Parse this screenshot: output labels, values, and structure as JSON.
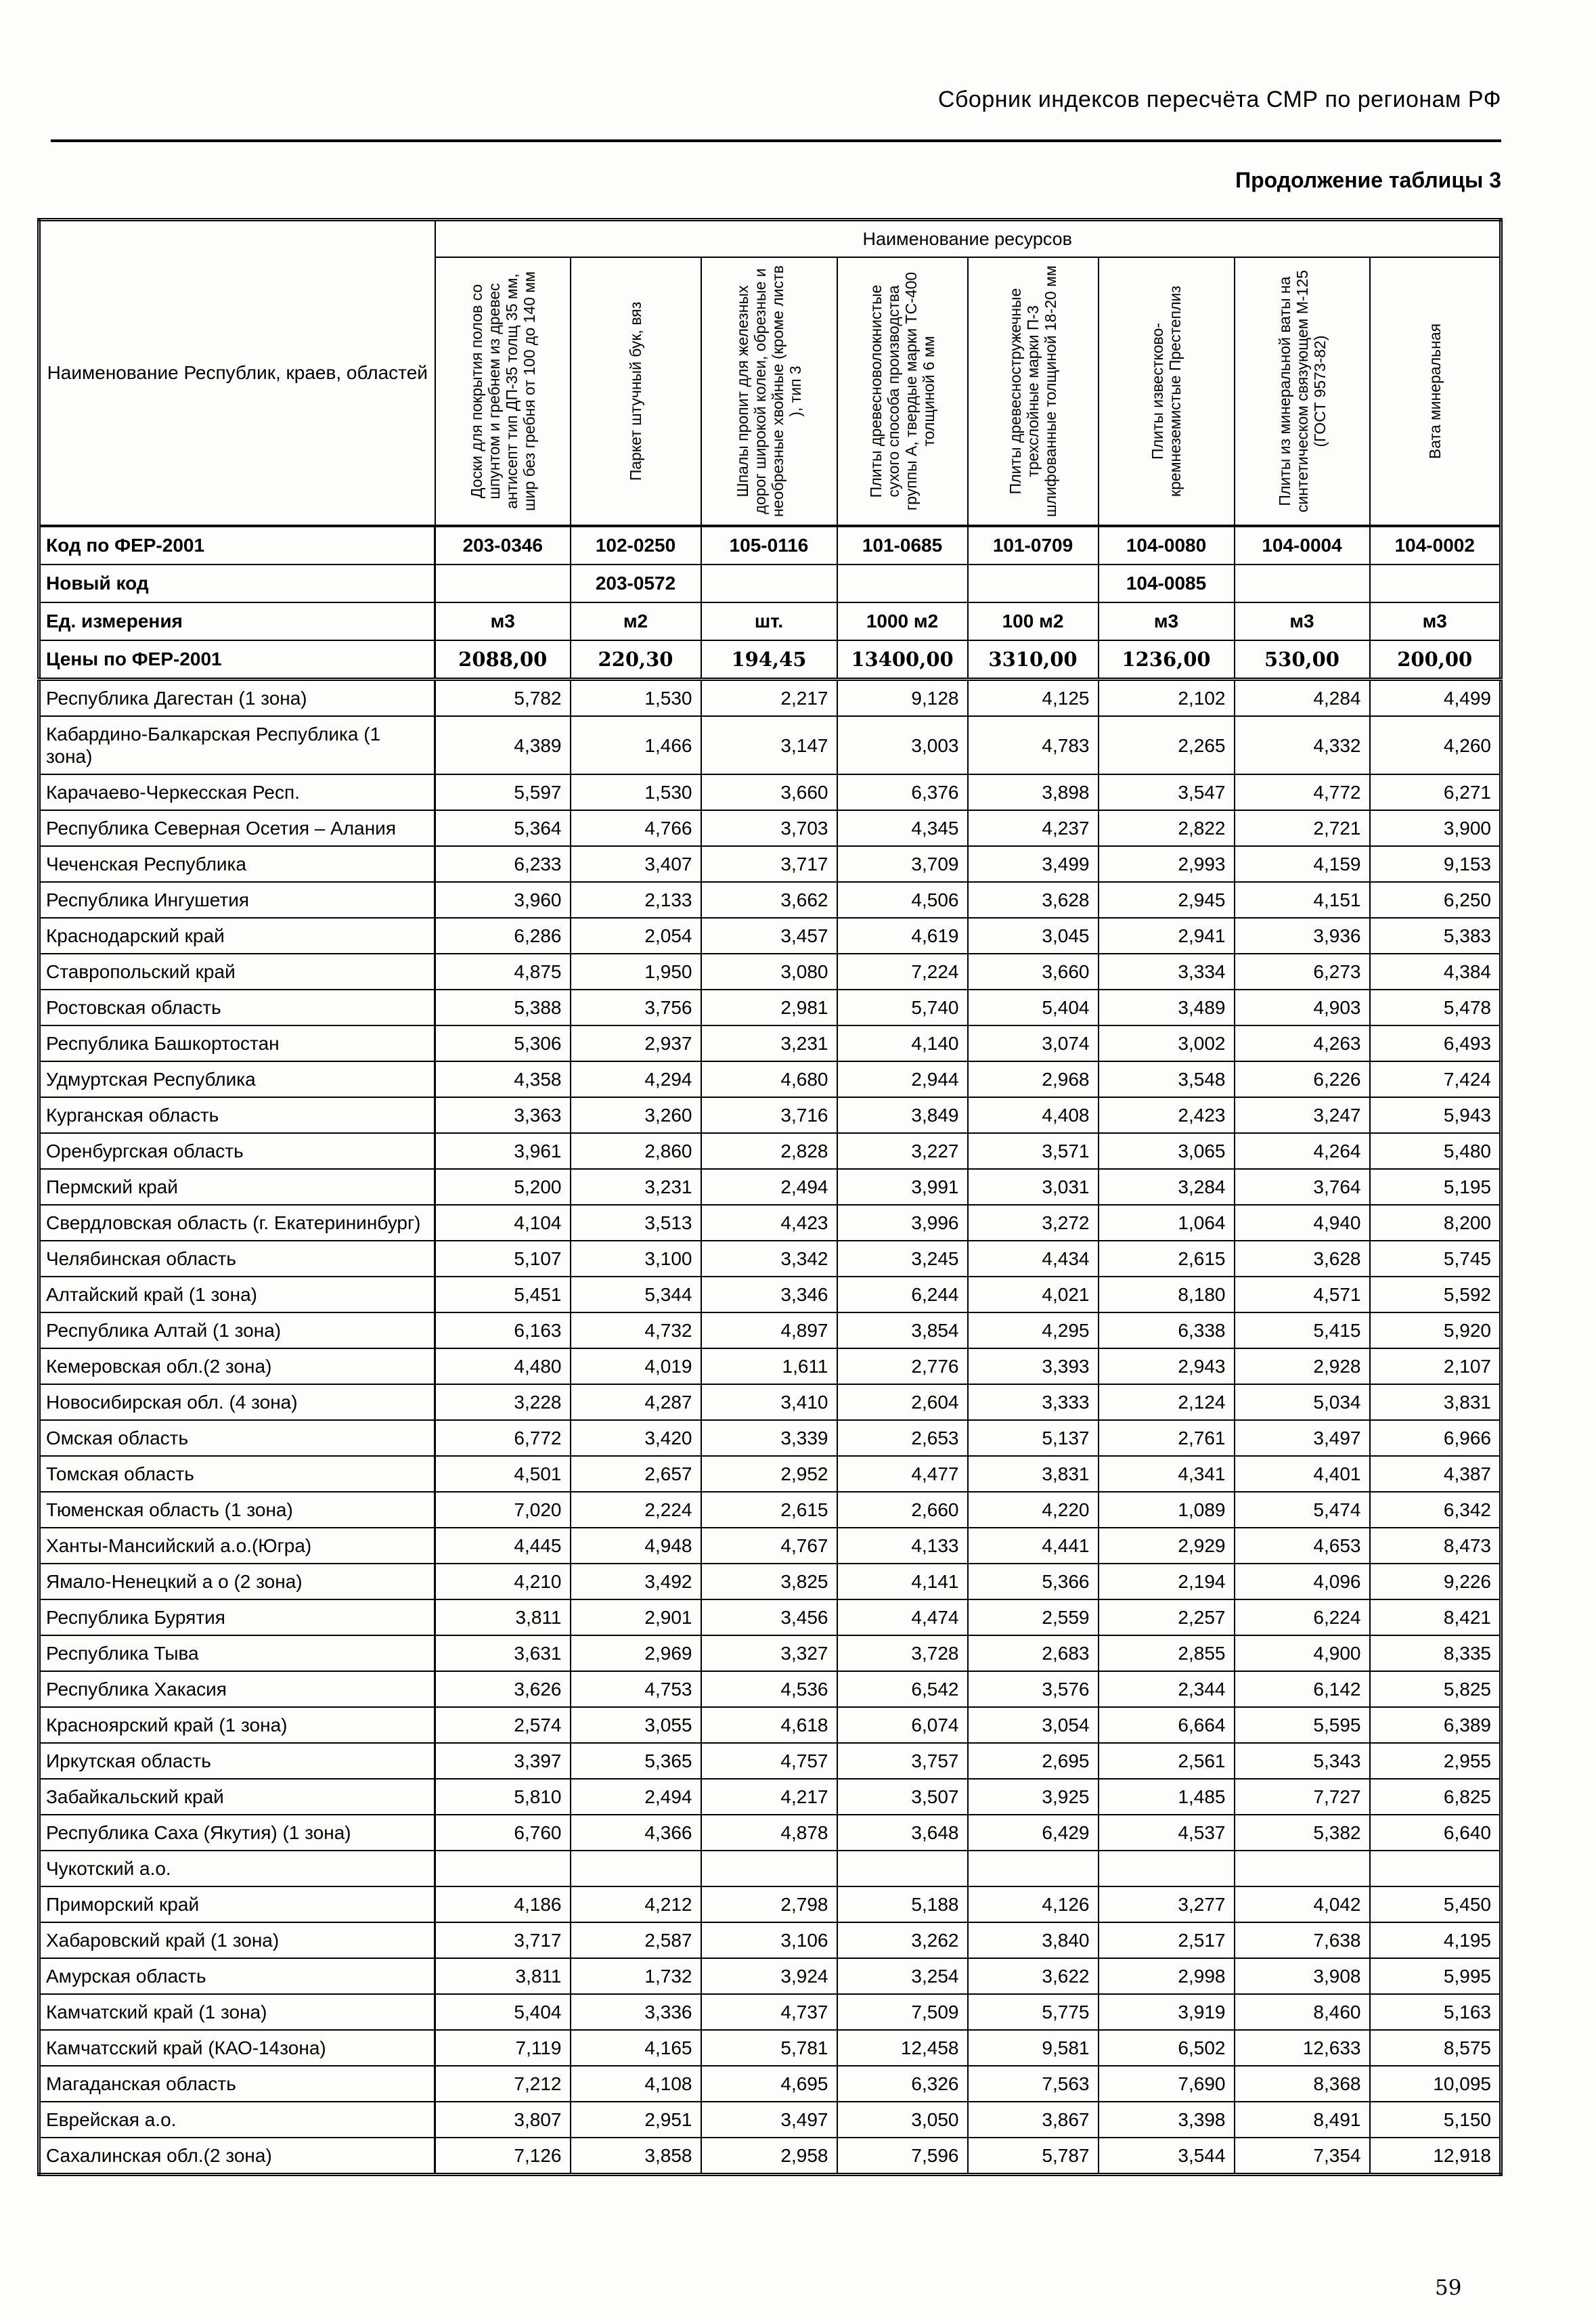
{
  "page": {
    "header_title": "Сборник индексов пересчёта СМР  по регионам РФ",
    "subtitle": "Продолжение таблицы 3",
    "page_number": "59"
  },
  "table": {
    "region_col_header": "Наименование Республик, краев, областей",
    "resources_header": "Наименование ресурсов",
    "row_labels": {
      "code": "Код по ФЕР-2001",
      "new_code": "Новый код",
      "unit": "Ед. измерения",
      "price": "Цены по ФЕР-2001"
    },
    "columns": [
      {
        "label": "Доски для  покрытия полов со шпунтом и гребнем  из древес антисепт тип  ДП-35 толщ 35 мм, шир  без гребня от 100 до 140 мм",
        "code": "203-0346",
        "new_code": "",
        "unit": "м3",
        "price": "2088,00"
      },
      {
        "label": "Паркет штучный бук, вяз",
        "code": "102-0250",
        "new_code": "203-0572",
        "unit": "м2",
        "price": "220,30"
      },
      {
        "label": "Шпалы пропит  для железных дорог широкой колеи, обрезные и необрезные хвойные (кроме листв ), тип 3",
        "code": "105-0116",
        "new_code": "",
        "unit": "шт.",
        "price": "194,45"
      },
      {
        "label": "Плиты  древесноволокнистые сухого способа производства группы А, твердые марки ТС-400 толщиной 6 мм",
        "code": "101-0685",
        "new_code": "",
        "unit": "1000 м2",
        "price": "13400,00"
      },
      {
        "label": "Плиты древесностружечные трехслойные марки П-3 шлифованные  толщиной 18-20 мм",
        "code": "101-0709",
        "new_code": "",
        "unit": "100 м2",
        "price": "3310,00"
      },
      {
        "label": "Плиты известково-кремнеземистые Престеплиз",
        "code": "104-0080",
        "new_code": "104-0085",
        "unit": "м3",
        "price": "1236,00"
      },
      {
        "label": "Плиты из минеральной  ваты на синтетическом связующем М-125 (ГОСТ 9573-82)",
        "code": "104-0004",
        "new_code": "",
        "unit": "м3",
        "price": "530,00"
      },
      {
        "label": "Вата минеральная",
        "code": "104-0002",
        "new_code": "",
        "unit": "м3",
        "price": "200,00"
      }
    ],
    "rows": [
      {
        "region": "Республика Дагестан (1 зона)",
        "values": [
          "5,782",
          "1,530",
          "2,217",
          "9,128",
          "4,125",
          "2,102",
          "4,284",
          "4,499"
        ]
      },
      {
        "region": "Кабардино-Балкарская Республика (1 зона)",
        "values": [
          "4,389",
          "1,466",
          "3,147",
          "3,003",
          "4,783",
          "2,265",
          "4,332",
          "4,260"
        ]
      },
      {
        "region": "Карачаево-Черкесская Респ.",
        "values": [
          "5,597",
          "1,530",
          "3,660",
          "6,376",
          "3,898",
          "3,547",
          "4,772",
          "6,271"
        ]
      },
      {
        "region": "Республика Северная Осетия – Алания",
        "values": [
          "5,364",
          "4,766",
          "3,703",
          "4,345",
          "4,237",
          "2,822",
          "2,721",
          "3,900"
        ]
      },
      {
        "region": "Чеченская Республика",
        "values": [
          "6,233",
          "3,407",
          "3,717",
          "3,709",
          "3,499",
          "2,993",
          "4,159",
          "9,153"
        ]
      },
      {
        "region": "Республика Ингушетия",
        "values": [
          "3,960",
          "2,133",
          "3,662",
          "4,506",
          "3,628",
          "2,945",
          "4,151",
          "6,250"
        ]
      },
      {
        "region": "Краснодарский край",
        "values": [
          "6,286",
          "2,054",
          "3,457",
          "4,619",
          "3,045",
          "2,941",
          "3,936",
          "5,383"
        ]
      },
      {
        "region": "Ставропольский край",
        "values": [
          "4,875",
          "1,950",
          "3,080",
          "7,224",
          "3,660",
          "3,334",
          "6,273",
          "4,384"
        ]
      },
      {
        "region": "Ростовская область",
        "values": [
          "5,388",
          "3,756",
          "2,981",
          "5,740",
          "5,404",
          "3,489",
          "4,903",
          "5,478"
        ]
      },
      {
        "region": "Республика Башкортостан",
        "values": [
          "5,306",
          "2,937",
          "3,231",
          "4,140",
          "3,074",
          "3,002",
          "4,263",
          "6,493"
        ]
      },
      {
        "region": "Удмуртская Республика",
        "values": [
          "4,358",
          "4,294",
          "4,680",
          "2,944",
          "2,968",
          "3,548",
          "6,226",
          "7,424"
        ]
      },
      {
        "region": "Курганская область",
        "values": [
          "3,363",
          "3,260",
          "3,716",
          "3,849",
          "4,408",
          "2,423",
          "3,247",
          "5,943"
        ]
      },
      {
        "region": "Оренбургская область",
        "values": [
          "3,961",
          "2,860",
          "2,828",
          "3,227",
          "3,571",
          "3,065",
          "4,264",
          "5,480"
        ]
      },
      {
        "region": "Пермский край",
        "values": [
          "5,200",
          "3,231",
          "2,494",
          "3,991",
          "3,031",
          "3,284",
          "3,764",
          "5,195"
        ]
      },
      {
        "region": "Свердловская область (г. Екатерининбург)",
        "values": [
          "4,104",
          "3,513",
          "4,423",
          "3,996",
          "3,272",
          "1,064",
          "4,940",
          "8,200"
        ]
      },
      {
        "region": "Челябинская область",
        "values": [
          "5,107",
          "3,100",
          "3,342",
          "3,245",
          "4,434",
          "2,615",
          "3,628",
          "5,745"
        ]
      },
      {
        "region": "Алтайский край (1 зона)",
        "values": [
          "5,451",
          "5,344",
          "3,346",
          "6,244",
          "4,021",
          "8,180",
          "4,571",
          "5,592"
        ]
      },
      {
        "region": "Республика Алтай (1 зона)",
        "values": [
          "6,163",
          "4,732",
          "4,897",
          "3,854",
          "4,295",
          "6,338",
          "5,415",
          "5,920"
        ]
      },
      {
        "region": "Кемеровская обл.(2 зона)",
        "values": [
          "4,480",
          "4,019",
          "1,611",
          "2,776",
          "3,393",
          "2,943",
          "2,928",
          "2,107"
        ]
      },
      {
        "region": "Новосибирская обл. (4 зона)",
        "values": [
          "3,228",
          "4,287",
          "3,410",
          "2,604",
          "3,333",
          "2,124",
          "5,034",
          "3,831"
        ]
      },
      {
        "region": "Омская область",
        "values": [
          "6,772",
          "3,420",
          "3,339",
          "2,653",
          "5,137",
          "2,761",
          "3,497",
          "6,966"
        ]
      },
      {
        "region": "Томская область",
        "values": [
          "4,501",
          "2,657",
          "2,952",
          "4,477",
          "3,831",
          "4,341",
          "4,401",
          "4,387"
        ]
      },
      {
        "region": "Тюменская область (1 зона)",
        "values": [
          "7,020",
          "2,224",
          "2,615",
          "2,660",
          "4,220",
          "1,089",
          "5,474",
          "6,342"
        ]
      },
      {
        "region": "Ханты-Мансийский а.о.(Югра)",
        "values": [
          "4,445",
          "4,948",
          "4,767",
          "4,133",
          "4,441",
          "2,929",
          "4,653",
          "8,473"
        ]
      },
      {
        "region": "Ямало-Ненецкий а о  (2 зона)",
        "values": [
          "4,210",
          "3,492",
          "3,825",
          "4,141",
          "5,366",
          "2,194",
          "4,096",
          "9,226"
        ]
      },
      {
        "region": "Республика Бурятия",
        "values": [
          "3,811",
          "2,901",
          "3,456",
          "4,474",
          "2,559",
          "2,257",
          "6,224",
          "8,421"
        ]
      },
      {
        "region": "Республика Тыва",
        "values": [
          "3,631",
          "2,969",
          "3,327",
          "3,728",
          "2,683",
          "2,855",
          "4,900",
          "8,335"
        ]
      },
      {
        "region": "Республика Хакасия",
        "values": [
          "3,626",
          "4,753",
          "4,536",
          "6,542",
          "3,576",
          "2,344",
          "6,142",
          "5,825"
        ]
      },
      {
        "region": "Красноярский край (1 зона)",
        "values": [
          "2,574",
          "3,055",
          "4,618",
          "6,074",
          "3,054",
          "6,664",
          "5,595",
          "6,389"
        ]
      },
      {
        "region": "Иркутская область",
        "values": [
          "3,397",
          "5,365",
          "4,757",
          "3,757",
          "2,695",
          "2,561",
          "5,343",
          "2,955"
        ]
      },
      {
        "region": "Забайкальский край",
        "values": [
          "5,810",
          "2,494",
          "4,217",
          "3,507",
          "3,925",
          "1,485",
          "7,727",
          "6,825"
        ]
      },
      {
        "region": "Республика Саха (Якутия) (1 зона)",
        "values": [
          "6,760",
          "4,366",
          "4,878",
          "3,648",
          "6,429",
          "4,537",
          "5,382",
          "6,640"
        ]
      },
      {
        "region": "Чукотский а.о.",
        "values": [
          "",
          "",
          "",
          "",
          "",
          "",
          "",
          ""
        ]
      },
      {
        "region": "Приморский край",
        "values": [
          "4,186",
          "4,212",
          "2,798",
          "5,188",
          "4,126",
          "3,277",
          "4,042",
          "5,450"
        ]
      },
      {
        "region": "Хабаровский край (1 зона)",
        "values": [
          "3,717",
          "2,587",
          "3,106",
          "3,262",
          "3,840",
          "2,517",
          "7,638",
          "4,195"
        ]
      },
      {
        "region": "Амурская область",
        "values": [
          "3,811",
          "1,732",
          "3,924",
          "3,254",
          "3,622",
          "2,998",
          "3,908",
          "5,995"
        ]
      },
      {
        "region": "Камчатский край (1 зона)",
        "values": [
          "5,404",
          "3,336",
          "4,737",
          "7,509",
          "5,775",
          "3,919",
          "8,460",
          "5,163"
        ]
      },
      {
        "region": "Камчатсский край (КАО-14зона)",
        "values": [
          "7,119",
          "4,165",
          "5,781",
          "12,458",
          "9,581",
          "6,502",
          "12,633",
          "8,575"
        ]
      },
      {
        "region": "Магаданская область",
        "values": [
          "7,212",
          "4,108",
          "4,695",
          "6,326",
          "7,563",
          "7,690",
          "8,368",
          "10,095"
        ]
      },
      {
        "region": "Еврейская а.о.",
        "values": [
          "3,807",
          "2,951",
          "3,497",
          "3,050",
          "3,867",
          "3,398",
          "8,491",
          "5,150"
        ]
      },
      {
        "region": "Сахалинская обл.(2 зона)",
        "values": [
          "7,126",
          "3,858",
          "2,958",
          "7,596",
          "5,787",
          "3,544",
          "7,354",
          "12,918"
        ]
      }
    ]
  }
}
